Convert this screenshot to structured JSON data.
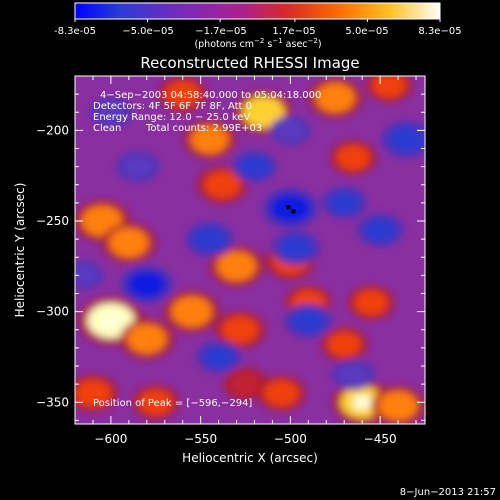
{
  "chart_data": {
    "type": "heatmap",
    "title": "Reconstructed RHESSI Image",
    "xlabel": "Heliocentric X (arcsec)",
    "ylabel": "Heliocentric Y (arcsec)",
    "xlim": [
      -620,
      -425
    ],
    "ylim": [
      -362,
      -170
    ],
    "xticks": [
      -600,
      -550,
      -500,
      -450
    ],
    "yticks": [
      -200,
      -250,
      -300,
      -350
    ],
    "colorbar": {
      "min": -8.3e-05,
      "max": 8.3e-05,
      "tick_labels": [
        "-8.3e-05",
        "−5.0e−05",
        "−1.7e−05",
        "1.7e−05",
        "5.0e−05",
        "8.3e−05"
      ],
      "tick_values": [
        -8.3e-05,
        -5e-05,
        -1.7e-05,
        1.7e-05,
        5e-05,
        8.3e-05
      ],
      "unit_prefix": "(photons cm",
      "unit_exp1": "−2",
      "unit_mid": " s",
      "unit_exp2": "−1",
      "unit_mid2": " asec",
      "unit_exp3": "−2",
      "unit_suffix": ")",
      "colors": [
        "#0000ff",
        "#6a2ab8",
        "#a020a0",
        "#e02020",
        "#ff8000",
        "#ffff40",
        "#ffffff"
      ]
    },
    "annotations": {
      "time_range": "4−Sep−2003 04:58:40.000 to 05:04:18.000",
      "detectors": "Detectors: 4F 5F 6F 7F 8F, Att 0",
      "energy": "Energy Range: 12.0 − 25.0 keV",
      "method": "Clean",
      "counts": "Total counts: 2.99E+03",
      "peak": "Position of Peak = [−596,−294]"
    },
    "peak": {
      "x": -596,
      "y": -294
    },
    "bright_features": [
      {
        "x": -560,
        "y": -180,
        "level": 0.55
      },
      {
        "x": -545,
        "y": -205,
        "level": 0.65
      },
      {
        "x": -538,
        "y": -230,
        "level": 0.6
      },
      {
        "x": -515,
        "y": -190,
        "level": 0.8
      },
      {
        "x": -475,
        "y": -182,
        "level": 0.7
      },
      {
        "x": -465,
        "y": -215,
        "level": 0.5
      },
      {
        "x": -605,
        "y": -250,
        "level": 0.75
      },
      {
        "x": -590,
        "y": -262,
        "level": 0.7
      },
      {
        "x": -600,
        "y": -305,
        "level": 0.98
      },
      {
        "x": -580,
        "y": -315,
        "level": 0.7
      },
      {
        "x": -555,
        "y": -300,
        "level": 0.75
      },
      {
        "x": -530,
        "y": -275,
        "level": 0.7
      },
      {
        "x": -528,
        "y": -310,
        "level": 0.6
      },
      {
        "x": -500,
        "y": -272,
        "level": 0.6
      },
      {
        "x": -490,
        "y": -295,
        "level": 0.5
      },
      {
        "x": -470,
        "y": -318,
        "level": 0.5
      },
      {
        "x": -455,
        "y": -295,
        "level": 0.5
      },
      {
        "x": -460,
        "y": -350,
        "level": 0.85
      },
      {
        "x": -440,
        "y": -352,
        "level": 0.7
      },
      {
        "x": -575,
        "y": -350,
        "level": 0.5
      },
      {
        "x": -610,
        "y": -345,
        "level": 0.6
      },
      {
        "x": -445,
        "y": -175,
        "level": 0.5
      },
      {
        "x": -525,
        "y": -340,
        "level": 0.45
      },
      {
        "x": -505,
        "y": -345,
        "level": 0.55
      }
    ],
    "dark_features": [
      {
        "x": -500,
        "y": -243,
        "level": -0.85
      },
      {
        "x": -497,
        "y": -265,
        "level": -0.6
      },
      {
        "x": -580,
        "y": -285,
        "level": -0.75
      },
      {
        "x": -545,
        "y": -260,
        "level": -0.6
      },
      {
        "x": -490,
        "y": -305,
        "level": -0.6
      },
      {
        "x": -435,
        "y": -205,
        "level": -0.7
      },
      {
        "x": -450,
        "y": -255,
        "level": -0.55
      },
      {
        "x": -520,
        "y": -220,
        "level": -0.5
      },
      {
        "x": -470,
        "y": -240,
        "level": -0.5
      },
      {
        "x": -540,
        "y": -325,
        "level": -0.5
      },
      {
        "x": -600,
        "y": -190,
        "level": -0.4
      },
      {
        "x": -585,
        "y": -220,
        "level": -0.45
      },
      {
        "x": -615,
        "y": -280,
        "level": -0.35
      },
      {
        "x": -500,
        "y": -200,
        "level": -0.4
      },
      {
        "x": -465,
        "y": -335,
        "level": -0.45
      }
    ]
  },
  "footer": {
    "date": "8−Jun−2013 21:57"
  }
}
